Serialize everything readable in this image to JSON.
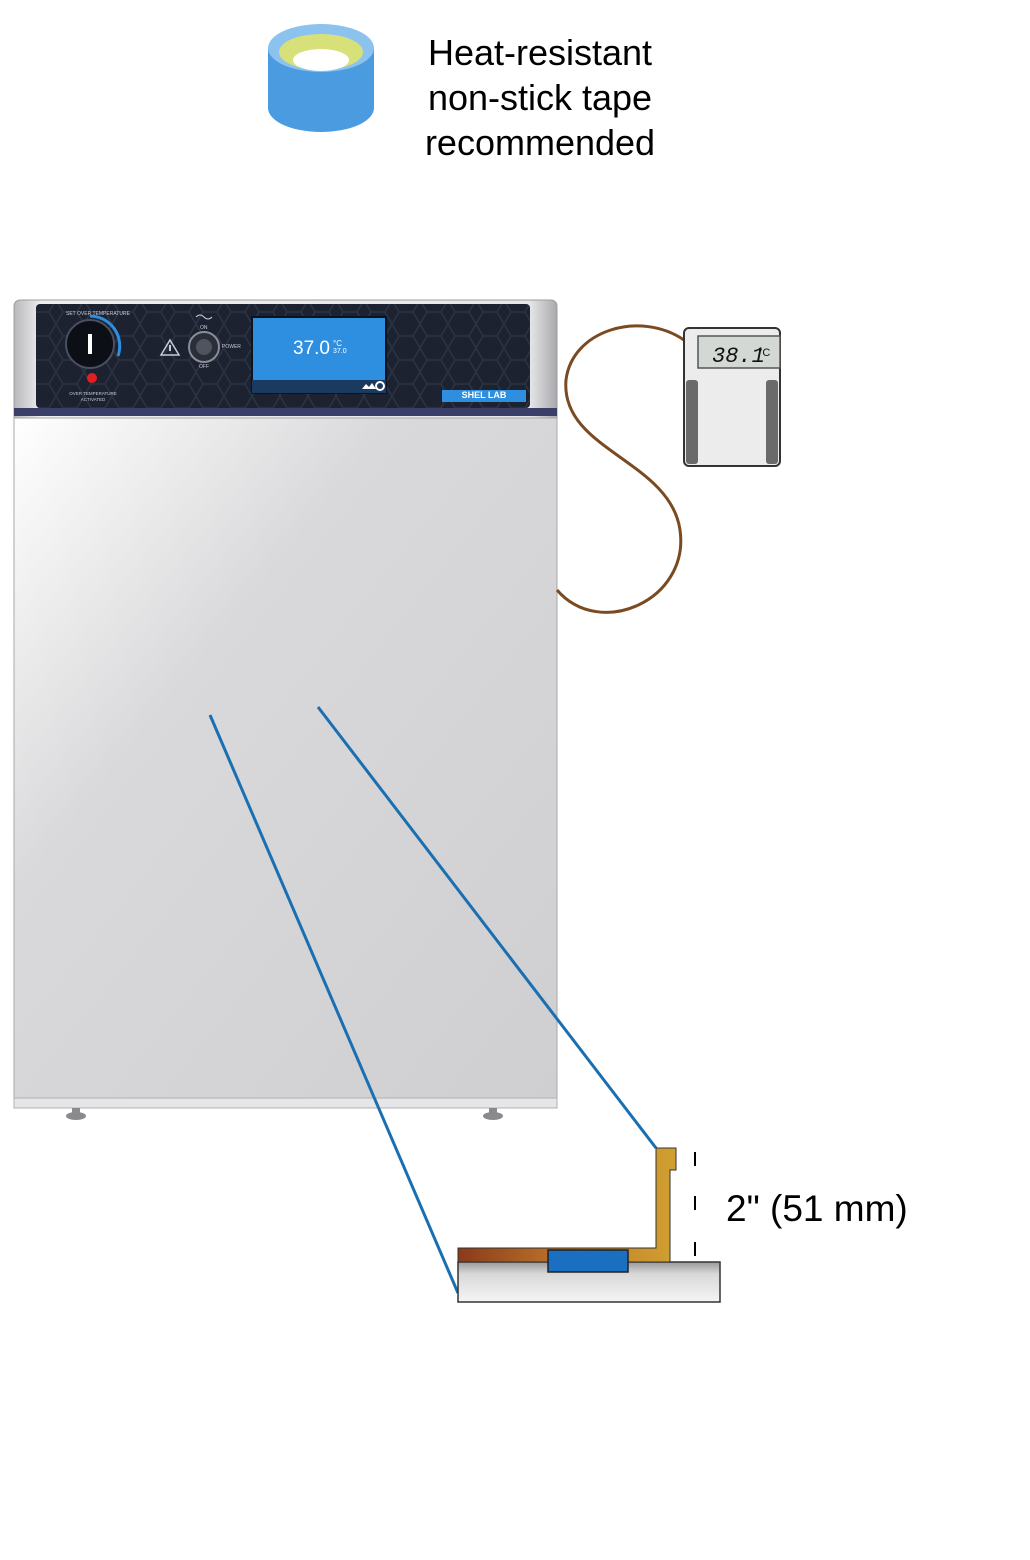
{
  "tape_note": {
    "lines": [
      "Heat-resistant",
      "non-stick tape",
      "recommended"
    ],
    "icon": "tape-roll-icon",
    "tape_color": "#4a9be0",
    "tape_inner_color": "#d8e07a"
  },
  "incubator": {
    "panel": {
      "set_over_temp_label": "SET OVER TEMPERATURE",
      "over_temp_activated_label": "OVER TEMPERATURE ACTIVATED",
      "on_label": "ON",
      "off_label": "OFF",
      "power_label": "POWER",
      "display_temp": "37.0",
      "display_unit": "°C",
      "display_setpoint": "37.0",
      "brand": "SHEL LAB",
      "panel_color": "#1c2230",
      "display_color": "#2e8fe0"
    },
    "body_color": "#d6d6d8"
  },
  "thermometer": {
    "reading": "38.1",
    "unit": "°C",
    "probe_wire_color": "#7a4a22"
  },
  "detail": {
    "dimension_label": "2\" (51 mm)",
    "leader_line_color": "#1a6fb0",
    "probe_color": "#b8742a",
    "tape_color": "#1a6fc0",
    "shelf_color": "#d0d0d0"
  }
}
